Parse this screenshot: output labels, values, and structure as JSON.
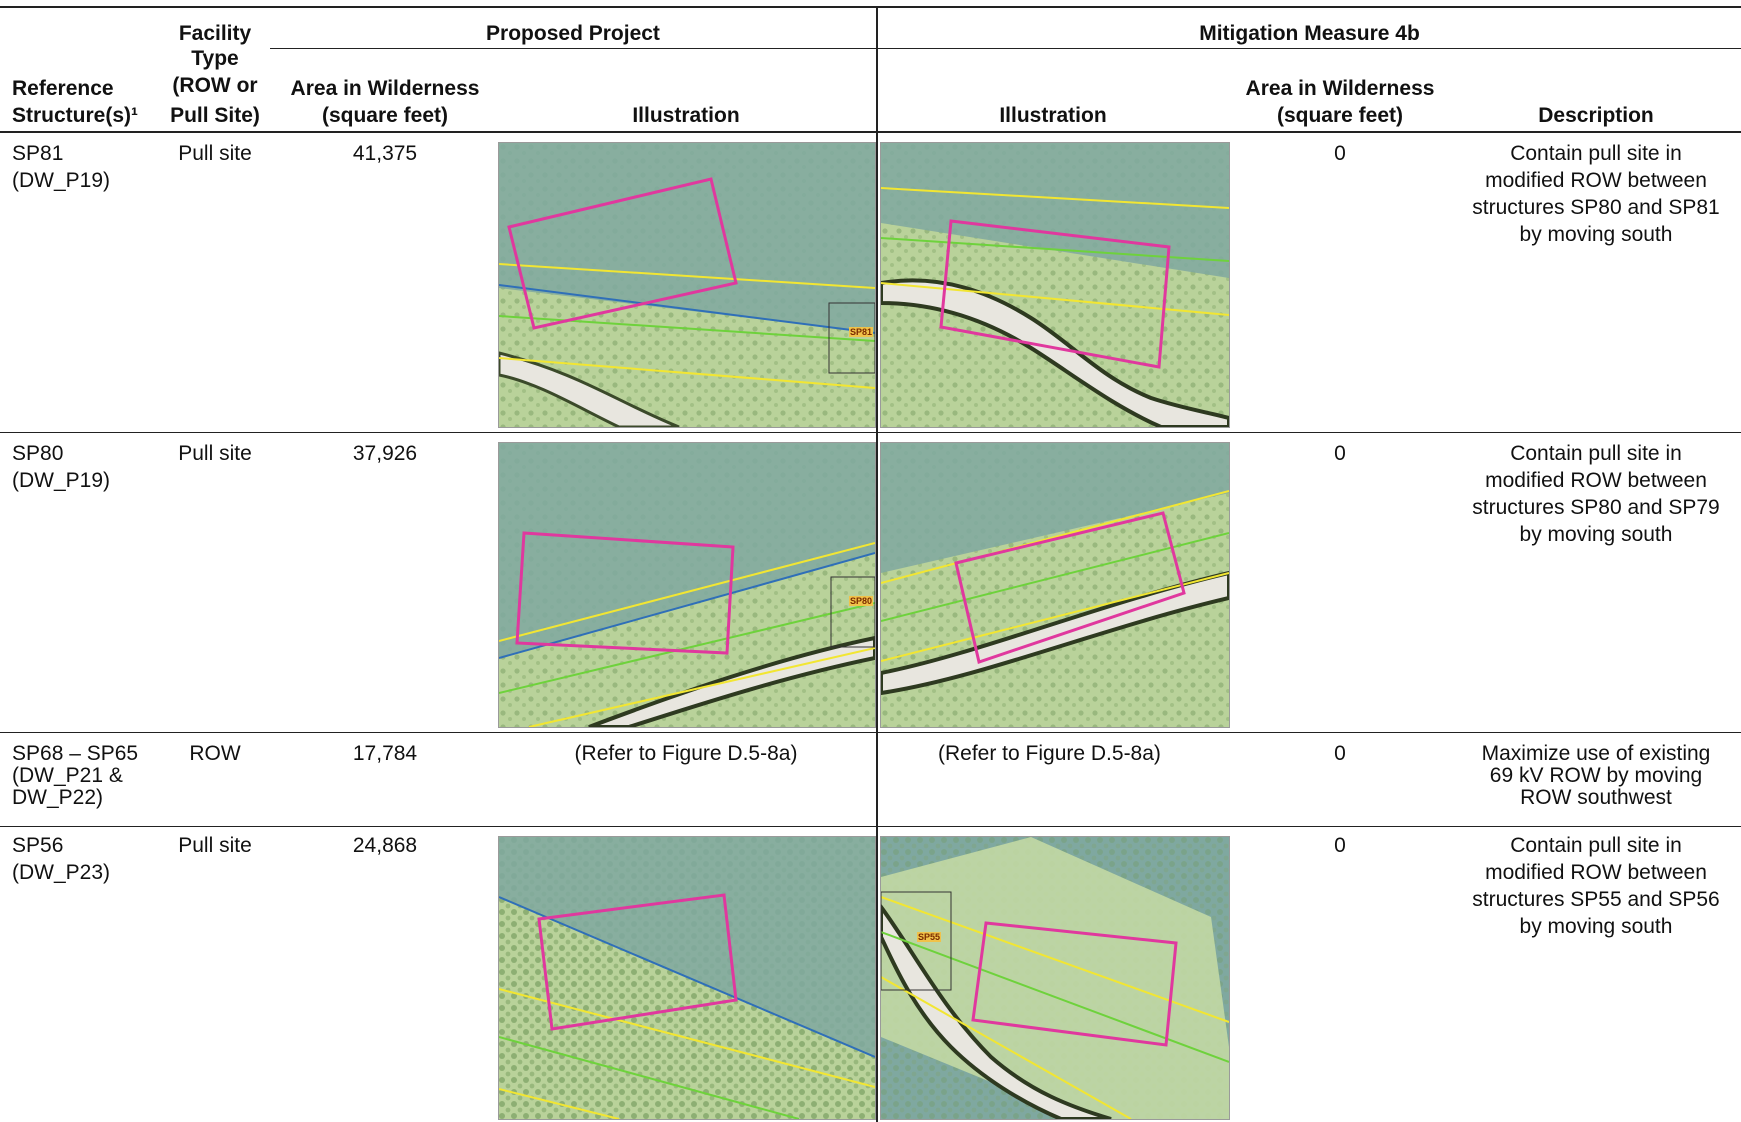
{
  "header": {
    "ref_label": "Reference Structure(s)¹",
    "ref_line1": "Reference",
    "ref_line2": "Structure(s)¹",
    "facility_line1": "Facility",
    "facility_line2": "Type",
    "facility_line3": "(ROW or",
    "facility_line4": "Pull Site)",
    "group_proposed": "Proposed Project",
    "group_mitigation": "Mitigation Measure 4b",
    "area_line1": "Area in Wilderness",
    "area_line2": "(square feet)",
    "illustration": "Illustration",
    "illustration2": "Illustration",
    "m_area_line1": "Area in Wilderness",
    "m_area_line2": "(square feet)",
    "description": "Description"
  },
  "rows": [
    {
      "ref1": "SP81",
      "ref2": "(DW_P19)",
      "ref3": "",
      "facility": "Pull site",
      "area": "41,375",
      "proposed_ref": "",
      "mitigation_ref": "",
      "m_area": "0",
      "desc": [
        "Contain pull site in",
        "modified ROW between",
        "structures SP80 and SP81",
        "by moving south"
      ],
      "marker_proposed": "SP81",
      "marker_mitigation": ""
    },
    {
      "ref1": "SP80",
      "ref2": "(DW_P19)",
      "ref3": "",
      "facility": "Pull site",
      "area": "37,926",
      "proposed_ref": "",
      "mitigation_ref": "",
      "m_area": "0",
      "desc": [
        "Contain pull site in",
        "modified ROW between",
        "structures SP80 and SP79",
        "by moving south"
      ],
      "marker_proposed": "SP80",
      "marker_mitigation": ""
    },
    {
      "ref1": "SP68 – SP65",
      "ref2": "(DW_P21 &",
      "ref3": "DW_P22)",
      "facility": "ROW",
      "area": "17,784",
      "proposed_ref": "(Refer to Figure D.5-8a)",
      "mitigation_ref": "(Refer to Figure D.5-8a)",
      "m_area": "0",
      "desc": [
        "Maximize use of existing",
        "69 kV ROW by moving",
        "ROW southwest",
        ""
      ],
      "marker_proposed": "",
      "marker_mitigation": ""
    },
    {
      "ref1": "SP56",
      "ref2": "(DW_P23)",
      "ref3": "",
      "facility": "Pull site",
      "area": "24,868",
      "proposed_ref": "",
      "mitigation_ref": "",
      "m_area": "0",
      "desc": [
        "Contain pull site in",
        "modified ROW between",
        "structures SP55 and SP56",
        "by moving south"
      ],
      "marker_proposed": "",
      "marker_mitigation": "SP55"
    }
  ],
  "colors": {
    "wilderness": "#7fa8a0",
    "land": "#b9d29a",
    "pull_site": "#e0389e",
    "row_yellow": "#f2e632",
    "row_green": "#6ed23c",
    "boundary_blue": "#2f6fb8"
  }
}
